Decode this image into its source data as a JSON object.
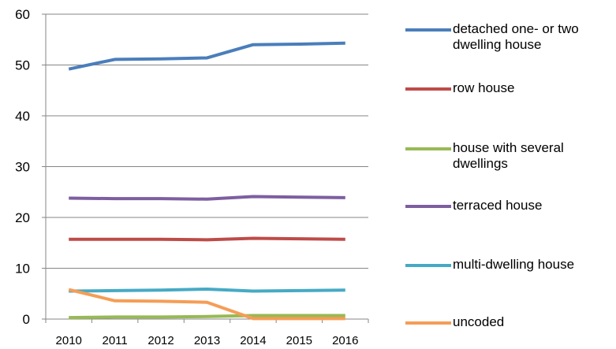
{
  "chart_data": {
    "type": "line",
    "categories": [
      "2010",
      "2011",
      "2012",
      "2013",
      "2014",
      "2015",
      "2016"
    ],
    "series": [
      {
        "name": "detached one- or two dwelling house",
        "color": "#4a7ebb",
        "values": [
          49.2,
          51.1,
          51.2,
          51.4,
          54.0,
          54.1,
          54.3
        ]
      },
      {
        "name": "row house",
        "color": "#be4b48",
        "values": [
          15.7,
          15.7,
          15.7,
          15.6,
          15.9,
          15.8,
          15.7
        ]
      },
      {
        "name": "house with several dwellings",
        "color": "#98b954",
        "values": [
          0.3,
          0.4,
          0.4,
          0.5,
          0.7,
          0.7,
          0.7
        ]
      },
      {
        "name": "terraced house",
        "color": "#7d5fa0",
        "values": [
          23.8,
          23.7,
          23.7,
          23.6,
          24.1,
          24.0,
          23.9
        ]
      },
      {
        "name": "multi-dwelling house",
        "color": "#46aac5",
        "values": [
          5.5,
          5.6,
          5.7,
          5.9,
          5.5,
          5.6,
          5.7
        ]
      },
      {
        "name": "uncoded",
        "color": "#f59d56",
        "values": [
          5.8,
          3.6,
          3.5,
          3.3,
          0.1,
          0.1,
          0.1
        ]
      }
    ],
    "ylim": [
      0,
      60
    ],
    "yticks": [
      0,
      10,
      20,
      30,
      40,
      50,
      60
    ],
    "grid": true,
    "legend": "right"
  }
}
